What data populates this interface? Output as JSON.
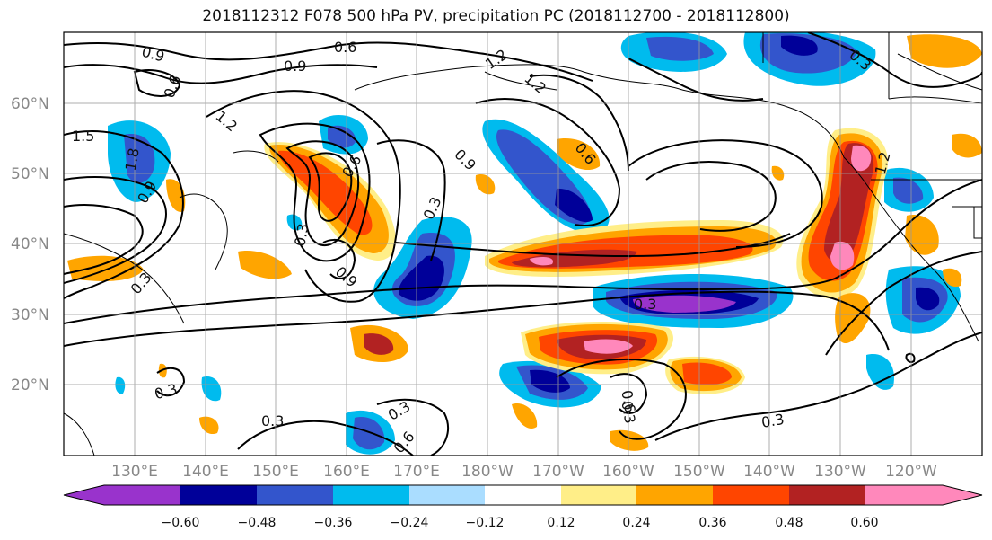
{
  "title": "2018112312 F078 500 hPa PV, precipitation PC (2018112700 - 2018112800)",
  "lat_labels": [
    "60°N",
    "50°N",
    "40°N",
    "30°N",
    "20°N"
  ],
  "lon_labels": [
    "130°E",
    "140°E",
    "150°E",
    "160°E",
    "170°E",
    "180°W",
    "170°W",
    "160°W",
    "150°W",
    "140°W",
    "130°W",
    "120°W"
  ],
  "contour_labels": [
    "0.9",
    "0.6",
    "0.6",
    "0.9",
    "1.2",
    "1.2",
    "1.5",
    "1.8",
    "1.2",
    "0.6",
    "0.9",
    "0.3",
    "0.9",
    "0.6",
    "0.3",
    "0.9",
    "0.3",
    "0.3",
    "0.3",
    "0.3",
    "0.6",
    "0.3",
    "0.6",
    "0.3",
    "1.2",
    "0.3",
    "0.3"
  ],
  "colorbar": {
    "colors": [
      "#9933cc",
      "#000099",
      "#3355cc",
      "#00bbee",
      "#aaddff",
      "#ffffff",
      "#ffee88",
      "#ffa500",
      "#ff4500",
      "#b22222",
      "#ff88bb"
    ],
    "ticks": [
      "−0.60",
      "−0.48",
      "−0.36",
      "−0.24",
      "−0.12",
      "0.12",
      "0.24",
      "0.36",
      "0.48",
      "0.60"
    ]
  },
  "chart_data": {
    "type": "map",
    "title": "2018112312 F078 500 hPa PV, precipitation PC (2018112700 - 2018112800)",
    "lat_range": [
      10,
      70
    ],
    "lon_range_deg_east": [
      120,
      250
    ],
    "grid": true,
    "filled_field": "precipitation PC",
    "contour_field": "500 hPa PV",
    "color_levels": [
      -0.6,
      -0.48,
      -0.36,
      -0.24,
      -0.12,
      0.12,
      0.24,
      0.36,
      0.48,
      0.6
    ]
  }
}
